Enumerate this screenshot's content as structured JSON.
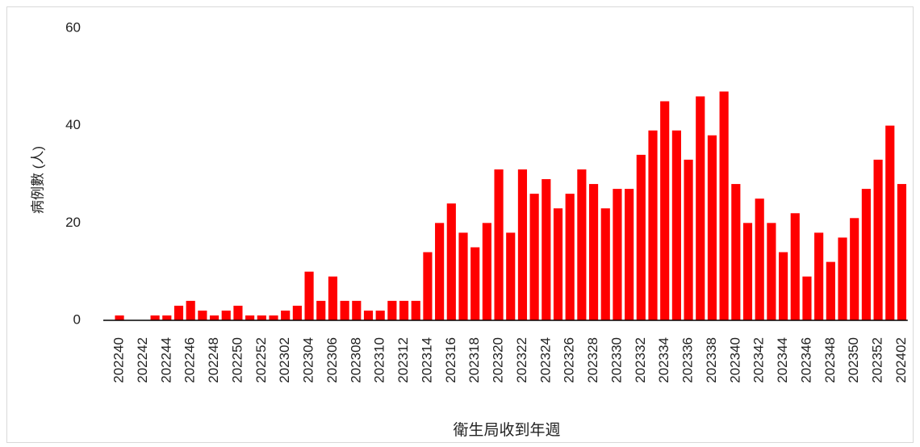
{
  "chart_data": {
    "type": "bar",
    "x_label": "衛生局收到年週",
    "y_label": "病例數 (人)",
    "categories": [
      "202240",
      null,
      "202242",
      null,
      "202244",
      null,
      "202246",
      null,
      "202248",
      null,
      "202250",
      null,
      "202252",
      null,
      "202302",
      null,
      "202304",
      null,
      "202306",
      null,
      "202308",
      null,
      "202310",
      null,
      "202312",
      null,
      "202314",
      null,
      "202316",
      null,
      "202318",
      null,
      "202320",
      null,
      "202322",
      null,
      "202324",
      null,
      "202326",
      null,
      "202328",
      null,
      "202330",
      null,
      "202332",
      null,
      "202334",
      null,
      "202336",
      null,
      "202338",
      null,
      "202340",
      null,
      "202342",
      null,
      "202344",
      null,
      "202346",
      null,
      "202348",
      null,
      "202350",
      null,
      "202352",
      null,
      "202402"
    ],
    "values": [
      1,
      0,
      0,
      1,
      1,
      3,
      4,
      2,
      1,
      2,
      3,
      1,
      1,
      1,
      2,
      3,
      10,
      4,
      9,
      4,
      4,
      2,
      2,
      4,
      4,
      4,
      14,
      20,
      24,
      18,
      15,
      20,
      31,
      18,
      31,
      26,
      29,
      23,
      26,
      31,
      28,
      23,
      27,
      27,
      34,
      39,
      45,
      39,
      33,
      46,
      38,
      47,
      28,
      20,
      25,
      20,
      14,
      22,
      9,
      18,
      12,
      17,
      21,
      27,
      33,
      40,
      28
    ],
    "color": "#ff0000",
    "ylim": [
      0,
      60
    ],
    "yticks": [
      0,
      20,
      40,
      60
    ],
    "grid": false
  }
}
